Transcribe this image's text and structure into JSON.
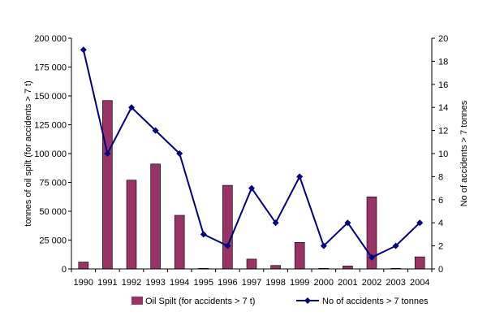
{
  "chart_data": {
    "type": "bar+line",
    "categories": [
      "1990",
      "1991",
      "1992",
      "1993",
      "1994",
      "1995",
      "1996",
      "1997",
      "1998",
      "1999",
      "2000",
      "2001",
      "2002",
      "2003",
      "2004"
    ],
    "series": [
      {
        "name": "Oil Spilt (for accidents > 7 t)",
        "type": "bar",
        "axis": "left",
        "color": "#993366",
        "values": [
          6000,
          146000,
          77000,
          91000,
          46500,
          500,
          72500,
          8500,
          3000,
          23000,
          500,
          2500,
          62500,
          500,
          10500
        ]
      },
      {
        "name": "No of accidents > 7 tonnes",
        "type": "line",
        "axis": "right",
        "color": "#000080",
        "values": [
          19,
          10,
          14,
          12,
          10,
          3,
          2,
          7,
          4,
          8,
          2,
          4,
          1,
          2,
          4
        ]
      }
    ],
    "ylabel": "tonnes of oil spilt (for accidents > 7 t)",
    "y2label": "No of accidents > 7 tonnes",
    "ylim": [
      0,
      200000
    ],
    "y2lim": [
      0,
      20
    ],
    "yticks": [
      "0",
      "25 000",
      "50 000",
      "75 000",
      "100 000",
      "125 000",
      "150 000",
      "175 000",
      "200 000"
    ],
    "y2ticks": [
      "0",
      "2",
      "4",
      "6",
      "8",
      "10",
      "12",
      "14",
      "16",
      "18",
      "20"
    ],
    "grid": false,
    "legend": "bottom"
  }
}
